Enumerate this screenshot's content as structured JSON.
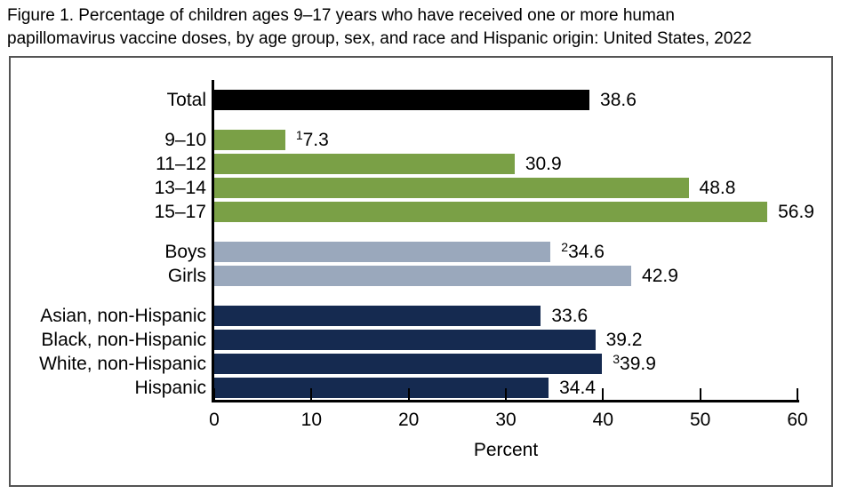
{
  "figure": {
    "title": "Figure 1. Percentage of children ages 9–17 years who have received one or more human papillomavirus vaccine doses, by age group, sex, and race and Hispanic origin: United States, 2022",
    "title_lines": [
      "Figure 1. Percentage of children ages 9–17 years who have received one or more human",
      "papillomavirus vaccine doses, by age group, sex, and race and Hispanic origin: United States, 2022"
    ]
  },
  "chart_data": {
    "type": "bar",
    "orientation": "horizontal",
    "title": "Percentage of children ages 9–17 years who have received one or more human papillomavirus vaccine doses, by age group, sex, and race and Hispanic origin: United States, 2022",
    "xlabel": "Percent",
    "ylabel": "",
    "xlim": [
      0,
      60
    ],
    "xticks": [
      0,
      10,
      20,
      30,
      40,
      50,
      60
    ],
    "grid": false,
    "legend": false,
    "bar_colors": {
      "total": "#000000",
      "age_group": "#7aa046",
      "sex": "#9aa8bc",
      "race_hispanic_origin": "#152a50"
    },
    "groups": [
      {
        "name": "total",
        "color": "#000000",
        "bars": [
          {
            "label": "Total",
            "value": 38.6,
            "display": "38.6"
          }
        ]
      },
      {
        "name": "age-group",
        "color": "#7aa046",
        "bars": [
          {
            "label": "9–10",
            "value": 7.3,
            "display": "7.3",
            "footnote": "1"
          },
          {
            "label": "11–12",
            "value": 30.9,
            "display": "30.9"
          },
          {
            "label": "13–14",
            "value": 48.8,
            "display": "48.8"
          },
          {
            "label": "15–17",
            "value": 56.9,
            "display": "56.9"
          }
        ]
      },
      {
        "name": "sex",
        "color": "#9aa8bc",
        "bars": [
          {
            "label": "Boys",
            "value": 34.6,
            "display": "34.6",
            "footnote": "2"
          },
          {
            "label": "Girls",
            "value": 42.9,
            "display": "42.9"
          }
        ]
      },
      {
        "name": "race-hispanic-origin",
        "color": "#152a50",
        "bars": [
          {
            "label": "Asian, non-Hispanic",
            "value": 33.6,
            "display": "33.6"
          },
          {
            "label": "Black, non-Hispanic",
            "value": 39.2,
            "display": "39.2"
          },
          {
            "label": "White, non-Hispanic",
            "value": 39.9,
            "display": "39.9",
            "footnote": "3"
          },
          {
            "label": "Hispanic",
            "value": 34.4,
            "display": "34.4"
          }
        ]
      }
    ]
  }
}
